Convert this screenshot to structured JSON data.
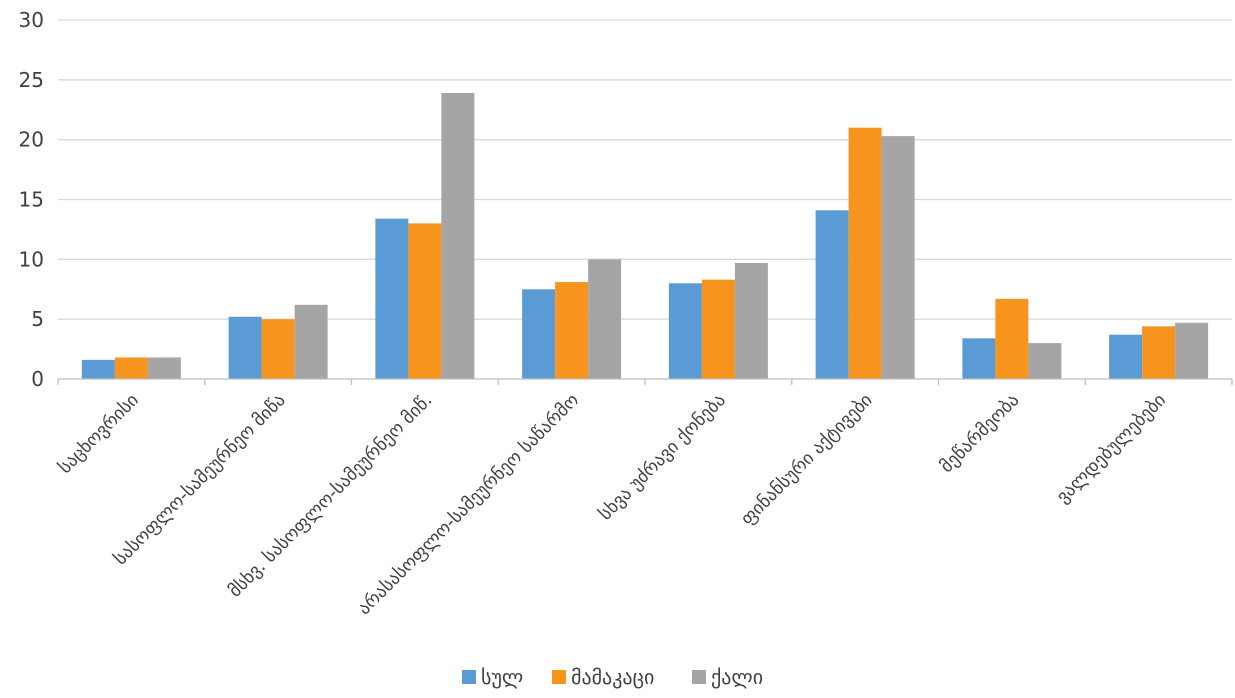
{
  "chart_data": {
    "type": "bar",
    "categories": [
      "საცხოვრისი",
      "სასოფლო-სამეურნეო მიწა",
      "მსხვ. სასოფლო-სამეურნეო მიწ.",
      "არასასოფლო-სამეურნეო საწარმო",
      "სხვა უძრავი ქონება",
      "ფინანსური აქტივები",
      "მეწარმეობა",
      "ვალდებულებები"
    ],
    "series": [
      {
        "name": "სულ",
        "color": "#5B9BD5",
        "values": [
          1.6,
          5.2,
          13.4,
          7.5,
          8.0,
          14.1,
          3.4,
          3.7
        ]
      },
      {
        "name": "მამაკაცი",
        "color": "#F7941D",
        "values": [
          1.8,
          5.0,
          13.0,
          8.1,
          8.3,
          21.0,
          6.7,
          4.4
        ]
      },
      {
        "name": "ქალი",
        "color": "#A5A5A5",
        "values": [
          1.8,
          6.2,
          23.9,
          10.0,
          9.7,
          20.3,
          3.0,
          4.7
        ]
      }
    ],
    "y_ticks": [
      "0",
      "5",
      "10",
      "15",
      "20",
      "25",
      "30"
    ],
    "ylim": [
      0,
      30
    ],
    "grid": true,
    "legend_position": "bottom",
    "title": "",
    "xlabel": "",
    "ylabel": ""
  }
}
